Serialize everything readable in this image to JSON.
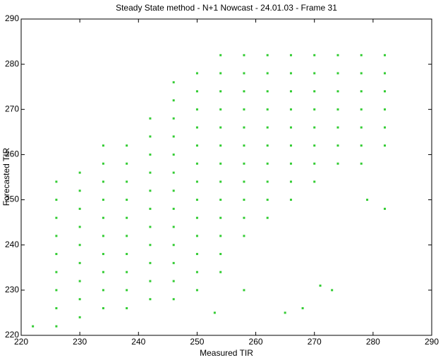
{
  "chart_data": {
    "type": "scatter",
    "title": "Steady State method - N+1 Nowcast - 24.01.03 - Frame 31",
    "xlabel": "Measured TIR",
    "ylabel": "Forecasted TIR",
    "xlim": [
      220,
      290
    ],
    "ylim": [
      220,
      290
    ],
    "xticks": [
      220,
      230,
      240,
      250,
      260,
      270,
      280,
      290
    ],
    "yticks": [
      220,
      230,
      240,
      250,
      260,
      270,
      280,
      290
    ],
    "color": "#33cc33",
    "x": [
      222,
      226,
      226,
      226,
      226,
      226,
      226,
      226,
      226,
      226,
      230,
      230,
      230,
      230,
      230,
      230,
      230,
      230,
      230,
      234,
      234,
      234,
      234,
      234,
      234,
      234,
      234,
      234,
      234,
      238,
      238,
      238,
      238,
      238,
      238,
      238,
      238,
      238,
      238,
      242,
      242,
      242,
      242,
      242,
      242,
      242,
      242,
      242,
      242,
      242,
      246,
      246,
      246,
      246,
      246,
      246,
      246,
      246,
      246,
      246,
      246,
      246,
      246,
      250,
      250,
      250,
      250,
      250,
      250,
      250,
      250,
      250,
      250,
      250,
      250,
      250,
      254,
      254,
      254,
      254,
      254,
      254,
      254,
      254,
      254,
      254,
      254,
      254,
      254,
      258,
      258,
      258,
      258,
      258,
      258,
      258,
      258,
      258,
      258,
      258,
      262,
      262,
      262,
      262,
      262,
      262,
      262,
      262,
      262,
      262,
      266,
      266,
      266,
      266,
      266,
      266,
      266,
      266,
      266,
      270,
      270,
      270,
      270,
      270,
      270,
      270,
      270,
      274,
      274,
      274,
      274,
      274,
      274,
      274,
      278,
      278,
      278,
      278,
      278,
      278,
      278,
      282,
      282,
      282,
      282,
      282,
      282,
      265,
      268,
      271,
      273,
      253,
      258,
      279,
      282
    ],
    "y": [
      222,
      222,
      226,
      230,
      234,
      238,
      242,
      246,
      250,
      254,
      224,
      228,
      232,
      236,
      240,
      244,
      248,
      252,
      256,
      226,
      230,
      234,
      238,
      242,
      246,
      250,
      254,
      258,
      262,
      226,
      230,
      234,
      238,
      242,
      246,
      250,
      254,
      258,
      262,
      228,
      232,
      236,
      240,
      244,
      248,
      252,
      256,
      260,
      264,
      268,
      228,
      232,
      236,
      240,
      244,
      248,
      252,
      256,
      260,
      264,
      268,
      272,
      276,
      230,
      234,
      238,
      242,
      246,
      250,
      254,
      258,
      262,
      266,
      270,
      274,
      278,
      234,
      238,
      242,
      246,
      250,
      254,
      258,
      262,
      266,
      270,
      274,
      278,
      282,
      242,
      246,
      250,
      254,
      258,
      262,
      266,
      270,
      274,
      278,
      282,
      246,
      250,
      254,
      258,
      262,
      266,
      270,
      274,
      278,
      282,
      250,
      254,
      258,
      262,
      266,
      270,
      274,
      278,
      282,
      254,
      258,
      262,
      266,
      270,
      274,
      278,
      282,
      258,
      262,
      266,
      270,
      274,
      278,
      282,
      258,
      262,
      266,
      270,
      274,
      278,
      282,
      262,
      266,
      270,
      274,
      278,
      282,
      225,
      226,
      231,
      230,
      225,
      230,
      250,
      248
    ]
  }
}
